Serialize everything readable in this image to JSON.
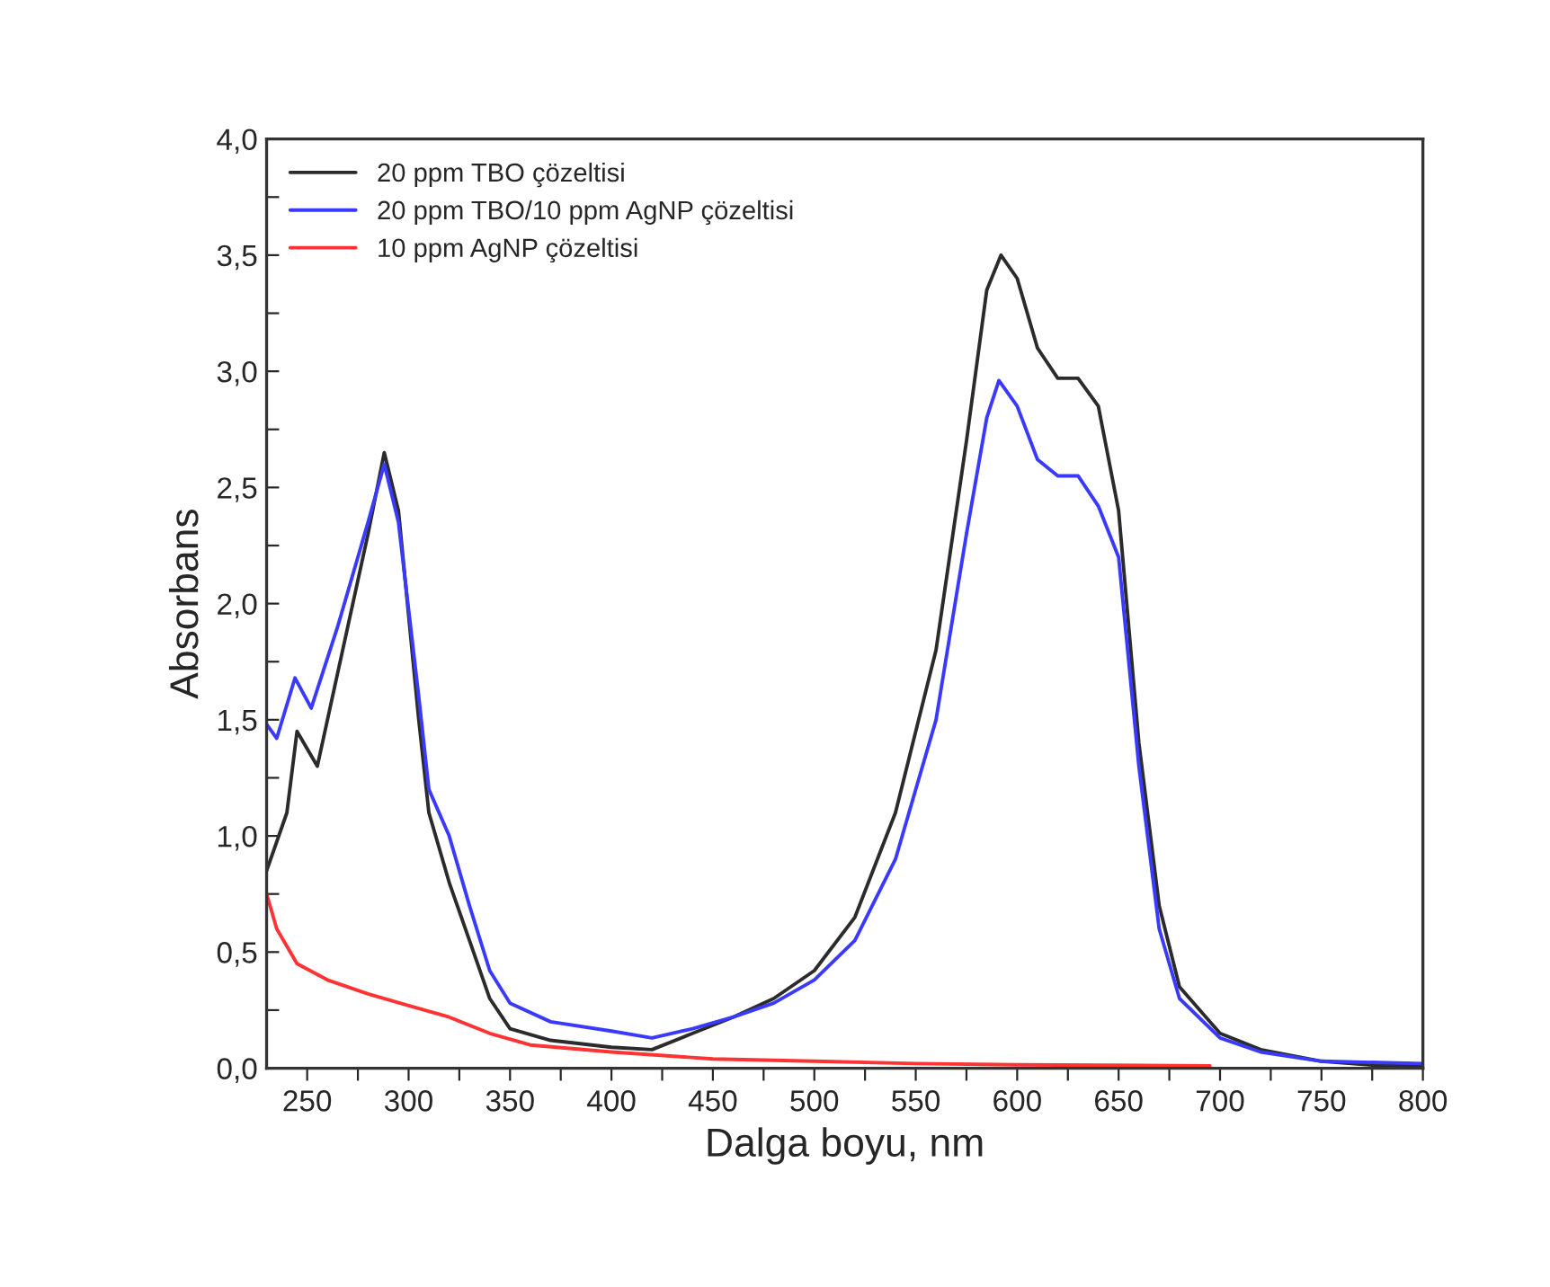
{
  "chart_data": {
    "type": "line",
    "xlabel": "Dalga boyu, nm",
    "ylabel": "Absorbans",
    "xlim": [
      230,
      800
    ],
    "ylim": [
      0,
      4
    ],
    "xticks": [
      250,
      {
        "value": 275,
        "label": null
      },
      300,
      {
        "value": 325,
        "label": null
      },
      350,
      {
        "value": 375,
        "label": null
      },
      400,
      {
        "value": 425,
        "label": null
      },
      450,
      {
        "value": 475,
        "label": null
      },
      500,
      {
        "value": 525,
        "label": null
      },
      550,
      {
        "value": 575,
        "label": null
      },
      600,
      {
        "value": 625,
        "label": null
      },
      650,
      {
        "value": 675,
        "label": null
      },
      700,
      {
        "value": 725,
        "label": null
      },
      750,
      {
        "value": 775,
        "label": null
      },
      800
    ],
    "yticks": [
      {
        "value": 0,
        "label": "0,0"
      },
      {
        "value": 0.25,
        "label": null
      },
      {
        "value": 0.5,
        "label": "0,5"
      },
      {
        "value": 0.75,
        "label": null
      },
      {
        "value": 1,
        "label": "1,0"
      },
      {
        "value": 1.25,
        "label": null
      },
      {
        "value": 1.5,
        "label": "1,5"
      },
      {
        "value": 1.75,
        "label": null
      },
      {
        "value": 2,
        "label": "2,0"
      },
      {
        "value": 2.25,
        "label": null
      },
      {
        "value": 2.5,
        "label": "2,5"
      },
      {
        "value": 2.75,
        "label": null
      },
      {
        "value": 3,
        "label": "3,0"
      },
      {
        "value": 3.25,
        "label": null
      },
      {
        "value": 3.5,
        "label": "3,5"
      },
      {
        "value": 3.75,
        "label": null
      },
      {
        "value": 4,
        "label": "4,0"
      }
    ],
    "grid": false,
    "legend": "top left",
    "marker": "none",
    "line_style": "solid",
    "series": [
      {
        "name": "20 ppm TBO çözeltisi",
        "color": "#2b2b2b",
        "x": [
          230,
          240,
          245,
          255,
          265,
          280,
          288,
          295,
          305,
          310,
          320,
          330,
          340,
          350,
          370,
          400,
          420,
          440,
          460,
          480,
          500,
          520,
          540,
          560,
          575,
          585,
          592,
          600,
          610,
          620,
          630,
          640,
          650,
          660,
          670,
          680,
          700,
          720,
          750,
          780,
          800
        ],
        "values": [
          0.85,
          1.1,
          1.45,
          1.3,
          1.7,
          2.3,
          2.65,
          2.4,
          1.5,
          1.1,
          0.8,
          0.55,
          0.3,
          0.17,
          0.12,
          0.09,
          0.08,
          0.15,
          0.22,
          0.3,
          0.42,
          0.65,
          1.1,
          1.8,
          2.7,
          3.35,
          3.5,
          3.4,
          3.1,
          2.97,
          2.97,
          2.85,
          2.4,
          1.4,
          0.7,
          0.35,
          0.15,
          0.08,
          0.03,
          0.01,
          0.01
        ]
      },
      {
        "name": "20 ppm TBO/10 ppm AgNP çözeltisi",
        "color": "#3a3aff",
        "x": [
          230,
          235,
          244,
          252,
          265,
          280,
          288,
          295,
          305,
          310,
          320,
          330,
          340,
          350,
          370,
          400,
          420,
          440,
          460,
          480,
          500,
          520,
          540,
          560,
          575,
          585,
          591,
          600,
          610,
          620,
          630,
          640,
          650,
          660,
          670,
          680,
          700,
          720,
          750,
          800
        ],
        "values": [
          1.48,
          1.42,
          1.68,
          1.55,
          1.9,
          2.35,
          2.6,
          2.35,
          1.6,
          1.2,
          1.0,
          0.7,
          0.42,
          0.28,
          0.2,
          0.16,
          0.13,
          0.17,
          0.22,
          0.28,
          0.38,
          0.55,
          0.9,
          1.5,
          2.3,
          2.8,
          2.96,
          2.85,
          2.62,
          2.55,
          2.55,
          2.42,
          2.2,
          1.3,
          0.6,
          0.3,
          0.13,
          0.07,
          0.03,
          0.02
        ]
      },
      {
        "name": "10 ppm AgNP çözeltisi",
        "color": "#ff3333",
        "x": [
          230,
          235,
          245,
          260,
          280,
          300,
          320,
          340,
          360,
          400,
          450,
          500,
          550,
          600,
          695
        ],
        "values": [
          0.75,
          0.6,
          0.45,
          0.38,
          0.32,
          0.27,
          0.22,
          0.15,
          0.1,
          0.07,
          0.04,
          0.03,
          0.02,
          0.015,
          0.01
        ]
      }
    ]
  }
}
